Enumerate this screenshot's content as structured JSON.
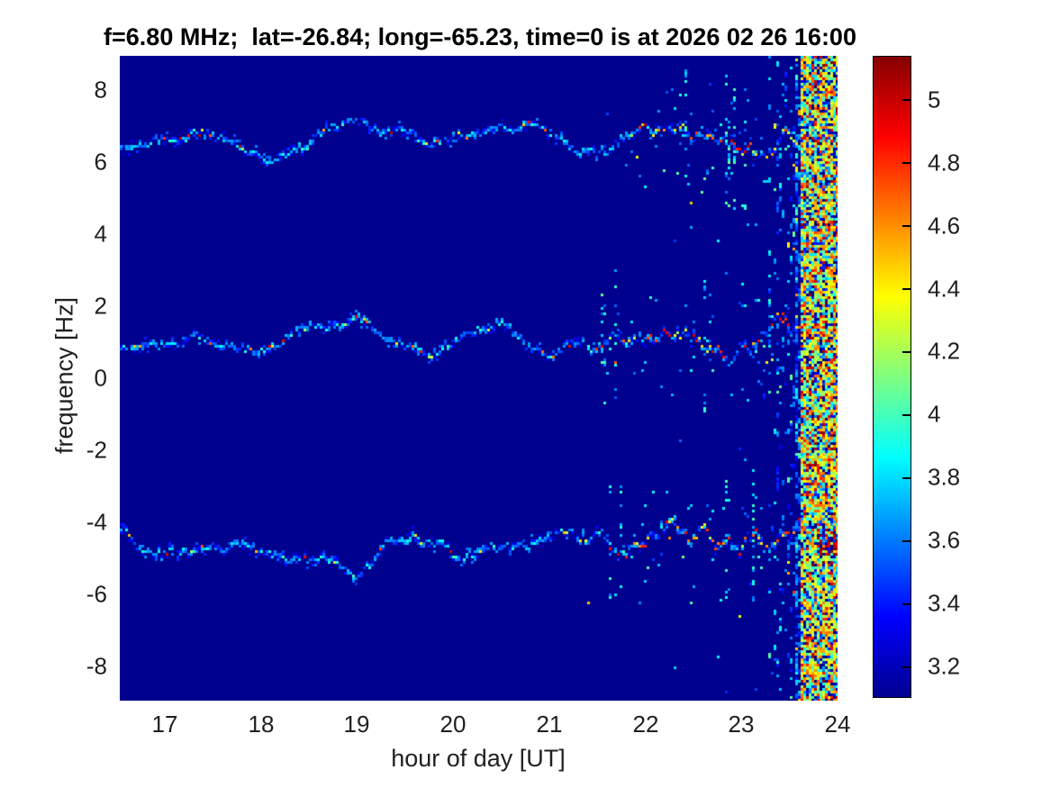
{
  "chart_data": {
    "type": "heatmap",
    "title": "f=6.80 MHz;  lat=-26.84; long=-65.23, time=0 is at 2026 02 26 16:00",
    "xlabel": "hour of day [UT]",
    "ylabel": "frequency [Hz]",
    "xlim": [
      16.53,
      24
    ],
    "ylim": [
      -8.95,
      8.95
    ],
    "clim": [
      3.1,
      5.14
    ],
    "colormap": "jet",
    "grid": false,
    "x_ticks": [
      17,
      18,
      19,
      20,
      21,
      22,
      23,
      24
    ],
    "y_ticks": [
      8,
      6,
      4,
      2,
      0,
      -2,
      -4,
      -6,
      -8
    ],
    "background_value": 3.13,
    "colorbar": {
      "ticks": [
        5,
        4.8,
        4.6,
        4.4,
        4.2,
        4,
        3.8,
        3.6,
        3.4,
        3.2
      ],
      "orientation": "vertical",
      "position": "right"
    },
    "traces": [
      {
        "name": "upper-doppler-trace",
        "center_freq_hz": 6.8,
        "wander_hz": 0.45,
        "volatility": 1.0,
        "cool_value_range": [
          3.4,
          4.0
        ],
        "warm_value_range": [
          4.2,
          5.05
        ],
        "warm_after_hour": 21.2
      },
      {
        "name": "middle-doppler-trace",
        "center_freq_hz": 1.0,
        "wander_hz": 0.4,
        "volatility": 1.0,
        "cool_value_range": [
          3.4,
          4.0
        ],
        "warm_value_range": [
          4.2,
          5.05
        ],
        "warm_after_hour": 21.2
      },
      {
        "name": "lower-doppler-trace",
        "center_freq_hz": -4.6,
        "wander_hz": 0.5,
        "volatility": 1.3,
        "cool_value_range": [
          3.4,
          4.0
        ],
        "warm_value_range": [
          4.2,
          5.05
        ],
        "warm_after_hour": 21.0
      }
    ],
    "noise": {
      "sparse_speckle": {
        "start_hour": 22.3,
        "end_hour": 23.2,
        "value_range": [
          3.4,
          3.9
        ]
      },
      "streak_zone": {
        "start_hour": 23.2,
        "end_hour": 23.62,
        "value_range": [
          3.35,
          4.1
        ]
      },
      "broadband_band": {
        "start_hour": 23.62,
        "end_hour": 24.0,
        "value_range": [
          3.25,
          5.14
        ]
      },
      "hot_spot": {
        "hour_range": [
          23.78,
          24.0
        ],
        "freq_hz": -4.55,
        "freq_halfwidth_hz": 0.35,
        "value_range": [
          4.9,
          5.14
        ]
      }
    }
  }
}
